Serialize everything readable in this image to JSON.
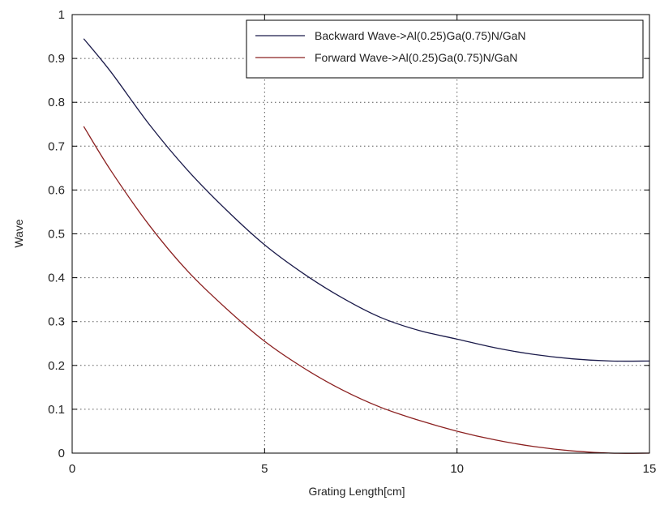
{
  "chart_data": {
    "type": "line",
    "xlabel": "Grating Length[cm]",
    "ylabel": "Wave",
    "xlim": [
      0,
      15
    ],
    "ylim": [
      0,
      1
    ],
    "xticks": [
      0,
      5,
      10,
      15
    ],
    "yticks": [
      0,
      0.1,
      0.2,
      0.3,
      0.4,
      0.5,
      0.6,
      0.7,
      0.8,
      0.9,
      1
    ],
    "xtick_labels": [
      "0",
      "5",
      "10",
      "15"
    ],
    "ytick_labels": [
      "0",
      "0.1",
      "0.2",
      "0.3",
      "0.4",
      "0.5",
      "0.6",
      "0.7",
      "0.8",
      "0.9",
      "1"
    ],
    "grid": true,
    "legend_position": "top-right",
    "series": [
      {
        "name": "Backward Wave->Al(0.25)Ga(0.75)N/GaN",
        "color": "#1a1a4a",
        "x": [
          0.3,
          1,
          2,
          3,
          4,
          5,
          6,
          7,
          8,
          9,
          10,
          11,
          12,
          13,
          14,
          15
        ],
        "y": [
          0.945,
          0.87,
          0.75,
          0.645,
          0.555,
          0.475,
          0.41,
          0.355,
          0.31,
          0.28,
          0.26,
          0.24,
          0.225,
          0.215,
          0.21,
          0.21
        ]
      },
      {
        "name": "Forward Wave->Al(0.25)Ga(0.75)N/GaN",
        "color": "#8b2020",
        "x": [
          0.3,
          1,
          2,
          3,
          4,
          5,
          6,
          7,
          8,
          9,
          10,
          11,
          12,
          13,
          14,
          15
        ],
        "y": [
          0.745,
          0.645,
          0.52,
          0.415,
          0.33,
          0.255,
          0.195,
          0.145,
          0.105,
          0.075,
          0.05,
          0.03,
          0.015,
          0.005,
          0.0,
          0.0
        ]
      }
    ]
  }
}
